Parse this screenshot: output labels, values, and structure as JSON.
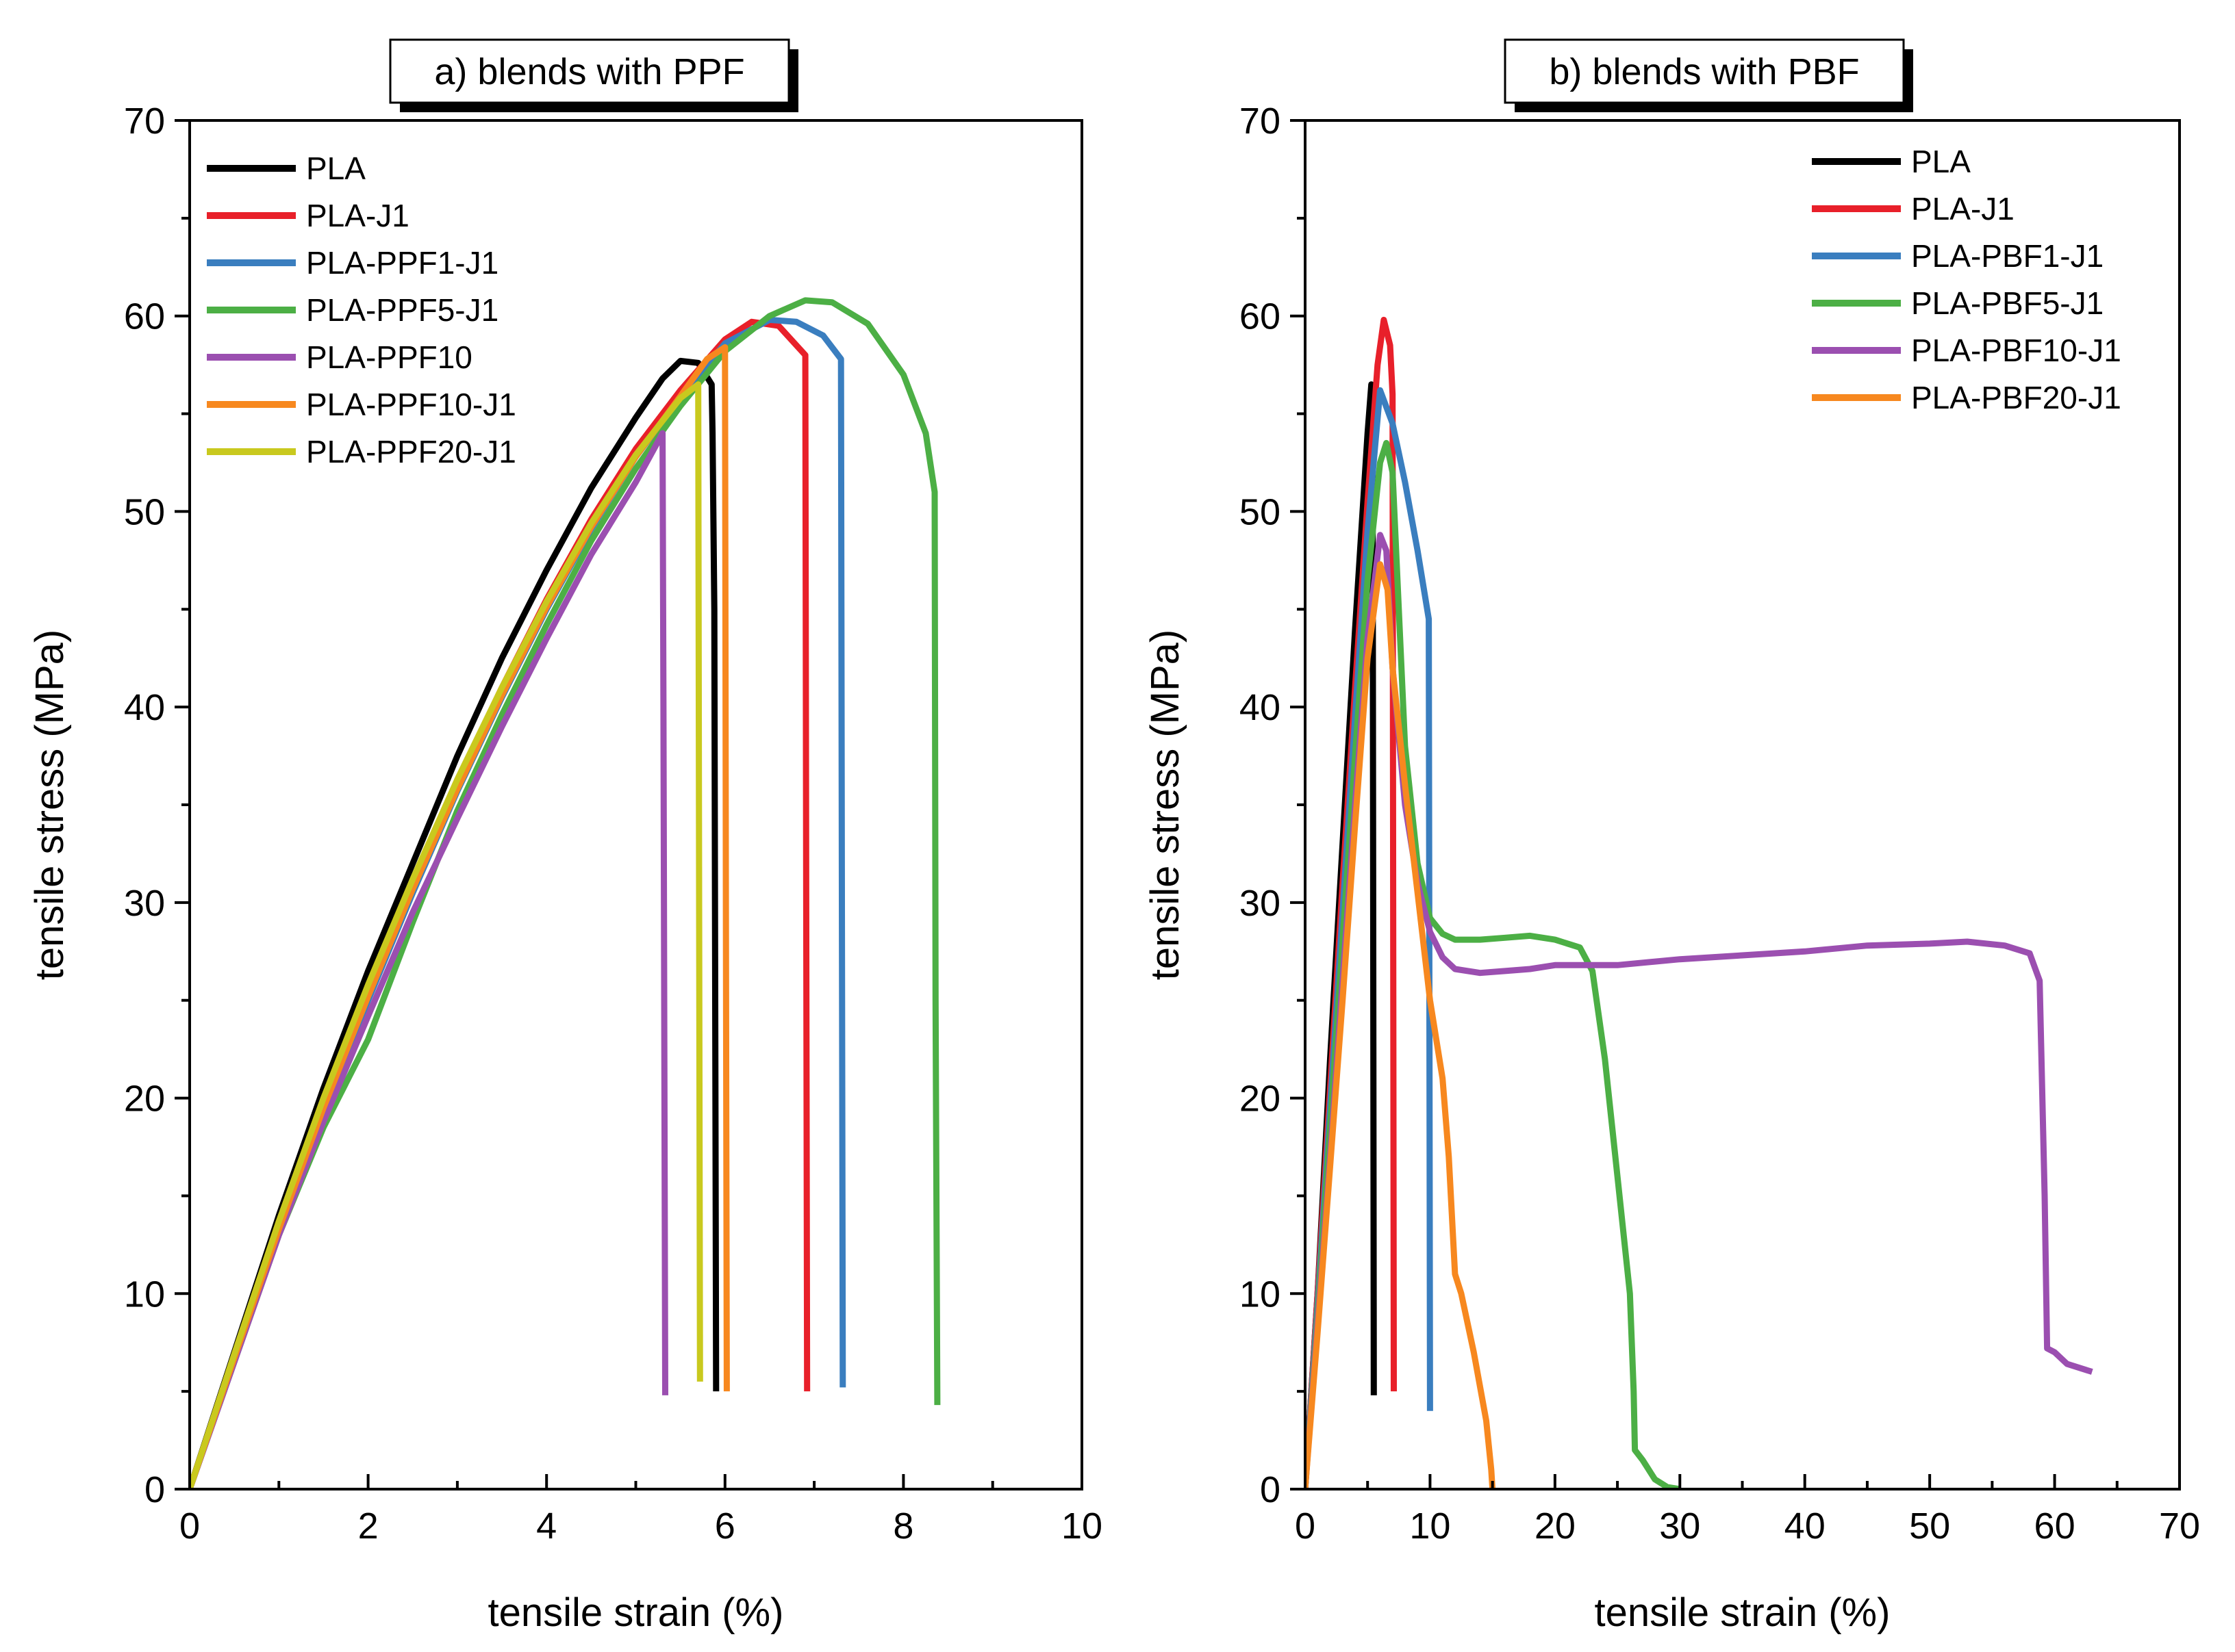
{
  "chart_data": [
    {
      "type": "line",
      "title": "a) blends with PPF",
      "xlabel": "tensile strain (%)",
      "ylabel": "tensile stress (MPa)",
      "xlim": [
        0,
        10
      ],
      "ylim": [
        0,
        70
      ],
      "xticks": [
        0,
        2,
        4,
        6,
        8,
        10
      ],
      "yticks": [
        0,
        10,
        20,
        30,
        40,
        50,
        60,
        70
      ],
      "legend_position": "top-left",
      "series": [
        {
          "name": "PLA",
          "color": "#000000",
          "points": [
            [
              0,
              0
            ],
            [
              0.5,
              7
            ],
            [
              1,
              14
            ],
            [
              1.5,
              20.5
            ],
            [
              2,
              26.5
            ],
            [
              2.5,
              32
            ],
            [
              3,
              37.5
            ],
            [
              3.5,
              42.5
            ],
            [
              4,
              47
            ],
            [
              4.5,
              51.2
            ],
            [
              5,
              54.8
            ],
            [
              5.3,
              56.8
            ],
            [
              5.5,
              57.7
            ],
            [
              5.7,
              57.6
            ],
            [
              5.85,
              56.5
            ],
            [
              5.86,
              54
            ],
            [
              5.88,
              45
            ],
            [
              5.9,
              5
            ]
          ]
        },
        {
          "name": "PLA-J1",
          "color": "#e8202a",
          "points": [
            [
              0,
              0
            ],
            [
              0.5,
              6.8
            ],
            [
              1,
              13.5
            ],
            [
              1.5,
              19.8
            ],
            [
              2,
              25.5
            ],
            [
              2.5,
              31
            ],
            [
              3,
              36.2
            ],
            [
              3.5,
              41
            ],
            [
              4,
              45.5
            ],
            [
              4.5,
              49.6
            ],
            [
              5,
              53.2
            ],
            [
              5.5,
              56.2
            ],
            [
              6,
              58.8
            ],
            [
              6.3,
              59.7
            ],
            [
              6.6,
              59.5
            ],
            [
              6.9,
              58
            ],
            [
              6.91,
              30
            ],
            [
              6.92,
              5
            ]
          ]
        },
        {
          "name": "PLA-PPF1-J1",
          "color": "#3a7ebf",
          "points": [
            [
              0,
              0
            ],
            [
              0.5,
              6.6
            ],
            [
              1,
              13.2
            ],
            [
              1.5,
              19.3
            ],
            [
              2,
              25
            ],
            [
              2.5,
              30.5
            ],
            [
              3,
              35.7
            ],
            [
              3.5,
              40.5
            ],
            [
              4,
              45
            ],
            [
              4.5,
              49.1
            ],
            [
              5,
              52.8
            ],
            [
              5.5,
              55.8
            ],
            [
              6,
              58.6
            ],
            [
              6.5,
              59.8
            ],
            [
              6.8,
              59.7
            ],
            [
              7.1,
              59
            ],
            [
              7.3,
              57.8
            ],
            [
              7.31,
              30
            ],
            [
              7.32,
              5.2
            ]
          ]
        },
        {
          "name": "PLA-PPF5-J1",
          "color": "#4caf45",
          "points": [
            [
              0,
              0
            ],
            [
              0.5,
              6.5
            ],
            [
              1,
              13
            ],
            [
              1.5,
              18.5
            ],
            [
              2,
              23
            ],
            [
              2.5,
              29
            ],
            [
              3,
              34.7
            ],
            [
              3.5,
              39.6
            ],
            [
              4,
              44.2
            ],
            [
              4.5,
              48.5
            ],
            [
              5,
              52.2
            ],
            [
              5.5,
              55.4
            ],
            [
              6,
              58.2
            ],
            [
              6.5,
              60
            ],
            [
              6.9,
              60.8
            ],
            [
              7.2,
              60.7
            ],
            [
              7.6,
              59.6
            ],
            [
              8,
              57
            ],
            [
              8.25,
              54
            ],
            [
              8.35,
              51
            ],
            [
              8.36,
              25
            ],
            [
              8.38,
              4.3
            ]
          ]
        },
        {
          "name": "PLA-PPF10",
          "color": "#9b4fb0",
          "points": [
            [
              0,
              0
            ],
            [
              0.5,
              6.5
            ],
            [
              1,
              13
            ],
            [
              1.5,
              18.8
            ],
            [
              2,
              24.2
            ],
            [
              2.5,
              29.5
            ],
            [
              3,
              34.3
            ],
            [
              3.5,
              39
            ],
            [
              4,
              43.5
            ],
            [
              4.5,
              47.8
            ],
            [
              5,
              51.5
            ],
            [
              5.3,
              54
            ],
            [
              5.31,
              40
            ],
            [
              5.33,
              4.8
            ]
          ]
        },
        {
          "name": "PLA-PPF10-J1",
          "color": "#f7881f",
          "points": [
            [
              0,
              0
            ],
            [
              0.5,
              6.7
            ],
            [
              1,
              13.3
            ],
            [
              1.5,
              19.5
            ],
            [
              2,
              25.2
            ],
            [
              2.5,
              30.7
            ],
            [
              3,
              35.8
            ],
            [
              3.5,
              40.6
            ],
            [
              4,
              45.1
            ],
            [
              4.5,
              49.2
            ],
            [
              5,
              52.8
            ],
            [
              5.5,
              55.9
            ],
            [
              5.8,
              57.8
            ],
            [
              6,
              58.4
            ],
            [
              6.01,
              30
            ],
            [
              6.02,
              5
            ]
          ]
        },
        {
          "name": "PLA-PPF20-J1",
          "color": "#c9c91e",
          "points": [
            [
              0,
              0
            ],
            [
              0.5,
              6.9
            ],
            [
              1,
              13.7
            ],
            [
              1.5,
              20
            ],
            [
              2,
              25.8
            ],
            [
              2.5,
              31.2
            ],
            [
              3,
              36.3
            ],
            [
              3.5,
              41
            ],
            [
              4,
              45.4
            ],
            [
              4.5,
              49.4
            ],
            [
              5,
              52.9
            ],
            [
              5.5,
              55.8
            ],
            [
              5.7,
              56.5
            ],
            [
              5.71,
              30
            ],
            [
              5.72,
              5.5
            ]
          ]
        }
      ]
    },
    {
      "type": "line",
      "title": "b) blends with PBF",
      "xlabel": "tensile strain (%)",
      "ylabel": "tensile stress (MPa)",
      "xlim": [
        0,
        70
      ],
      "ylim": [
        0,
        70
      ],
      "xticks": [
        0,
        10,
        20,
        30,
        40,
        50,
        60,
        70
      ],
      "yticks": [
        0,
        10,
        20,
        30,
        40,
        50,
        60,
        70
      ],
      "legend_position": "top-right",
      "series": [
        {
          "name": "PLA",
          "color": "#000000",
          "points": [
            [
              0,
              0
            ],
            [
              1,
              10
            ],
            [
              2,
              22
            ],
            [
              3,
              33
            ],
            [
              4,
              44
            ],
            [
              5,
              54
            ],
            [
              5.3,
              56.5
            ],
            [
              5.4,
              55
            ],
            [
              5.45,
              30
            ],
            [
              5.5,
              4.8
            ]
          ]
        },
        {
          "name": "PLA-J1",
          "color": "#e8202a",
          "points": [
            [
              0,
              0
            ],
            [
              1,
              10
            ],
            [
              2,
              20.5
            ],
            [
              3,
              31
            ],
            [
              4,
              41
            ],
            [
              5,
              50.5
            ],
            [
              5.8,
              57.5
            ],
            [
              6.3,
              59.8
            ],
            [
              6.8,
              58.5
            ],
            [
              7,
              56
            ],
            [
              7.05,
              30
            ],
            [
              7.1,
              5
            ]
          ]
        },
        {
          "name": "PLA-PBF1-J1",
          "color": "#3a7ebf",
          "points": [
            [
              0,
              0
            ],
            [
              1,
              9.5
            ],
            [
              2,
              19.5
            ],
            [
              3,
              29.5
            ],
            [
              4,
              39.5
            ],
            [
              5,
              49
            ],
            [
              6,
              56.2
            ],
            [
              7,
              54.5
            ],
            [
              8,
              51.5
            ],
            [
              9,
              48
            ],
            [
              9.9,
              44.5
            ],
            [
              9.95,
              25
            ],
            [
              10,
              4
            ]
          ]
        },
        {
          "name": "PLA-PBF5-J1",
          "color": "#4caf45",
          "points": [
            [
              0,
              0
            ],
            [
              1,
              9
            ],
            [
              2,
              18.5
            ],
            [
              3,
              28
            ],
            [
              4,
              37.5
            ],
            [
              5,
              46.5
            ],
            [
              6,
              52.5
            ],
            [
              6.5,
              53.5
            ],
            [
              7,
              52
            ],
            [
              7.5,
              45
            ],
            [
              8,
              38
            ],
            [
              9,
              32
            ],
            [
              10,
              29.2
            ],
            [
              11,
              28.4
            ],
            [
              12,
              28.1
            ],
            [
              14,
              28.1
            ],
            [
              16,
              28.2
            ],
            [
              18,
              28.3
            ],
            [
              20,
              28.1
            ],
            [
              22,
              27.7
            ],
            [
              23,
              26.5
            ],
            [
              24,
              22
            ],
            [
              25,
              16
            ],
            [
              26,
              10
            ],
            [
              26.3,
              5
            ],
            [
              26.4,
              2
            ],
            [
              27,
              1.5
            ],
            [
              28,
              0.5
            ],
            [
              29,
              0.1
            ],
            [
              30,
              0
            ]
          ]
        },
        {
          "name": "PLA-PBF10-J1",
          "color": "#9b4fb0",
          "points": [
            [
              0,
              0
            ],
            [
              1,
              8.5
            ],
            [
              2,
              17
            ],
            [
              3,
              26
            ],
            [
              4,
              35
            ],
            [
              5,
              43.5
            ],
            [
              6,
              48.8
            ],
            [
              6.5,
              48
            ],
            [
              7,
              42
            ],
            [
              8,
              35
            ],
            [
              9,
              31
            ],
            [
              10,
              28.5
            ],
            [
              11,
              27.2
            ],
            [
              12,
              26.6
            ],
            [
              14,
              26.4
            ],
            [
              16,
              26.5
            ],
            [
              18,
              26.6
            ],
            [
              20,
              26.8
            ],
            [
              25,
              26.8
            ],
            [
              30,
              27.1
            ],
            [
              35,
              27.3
            ],
            [
              40,
              27.5
            ],
            [
              45,
              27.8
            ],
            [
              50,
              27.9
            ],
            [
              53,
              28
            ],
            [
              56,
              27.8
            ],
            [
              58,
              27.4
            ],
            [
              58.8,
              26
            ],
            [
              59.2,
              15
            ],
            [
              59.4,
              7.2
            ],
            [
              60,
              7
            ],
            [
              61,
              6.4
            ],
            [
              63,
              6
            ]
          ]
        },
        {
          "name": "PLA-PBF20-J1",
          "color": "#f7881f",
          "points": [
            [
              0,
              0
            ],
            [
              1,
              8
            ],
            [
              2,
              16.5
            ],
            [
              3,
              25
            ],
            [
              4,
              34
            ],
            [
              5,
              42.5
            ],
            [
              6,
              47.3
            ],
            [
              6.6,
              46
            ],
            [
              7,
              42
            ],
            [
              8,
              36
            ],
            [
              9,
              30.5
            ],
            [
              10,
              25
            ],
            [
              11,
              21
            ],
            [
              11.5,
              17
            ],
            [
              12,
              11
            ],
            [
              12.5,
              10
            ],
            [
              13.5,
              7
            ],
            [
              14.5,
              3.5
            ],
            [
              14.9,
              1
            ],
            [
              15,
              0
            ]
          ]
        }
      ]
    }
  ]
}
